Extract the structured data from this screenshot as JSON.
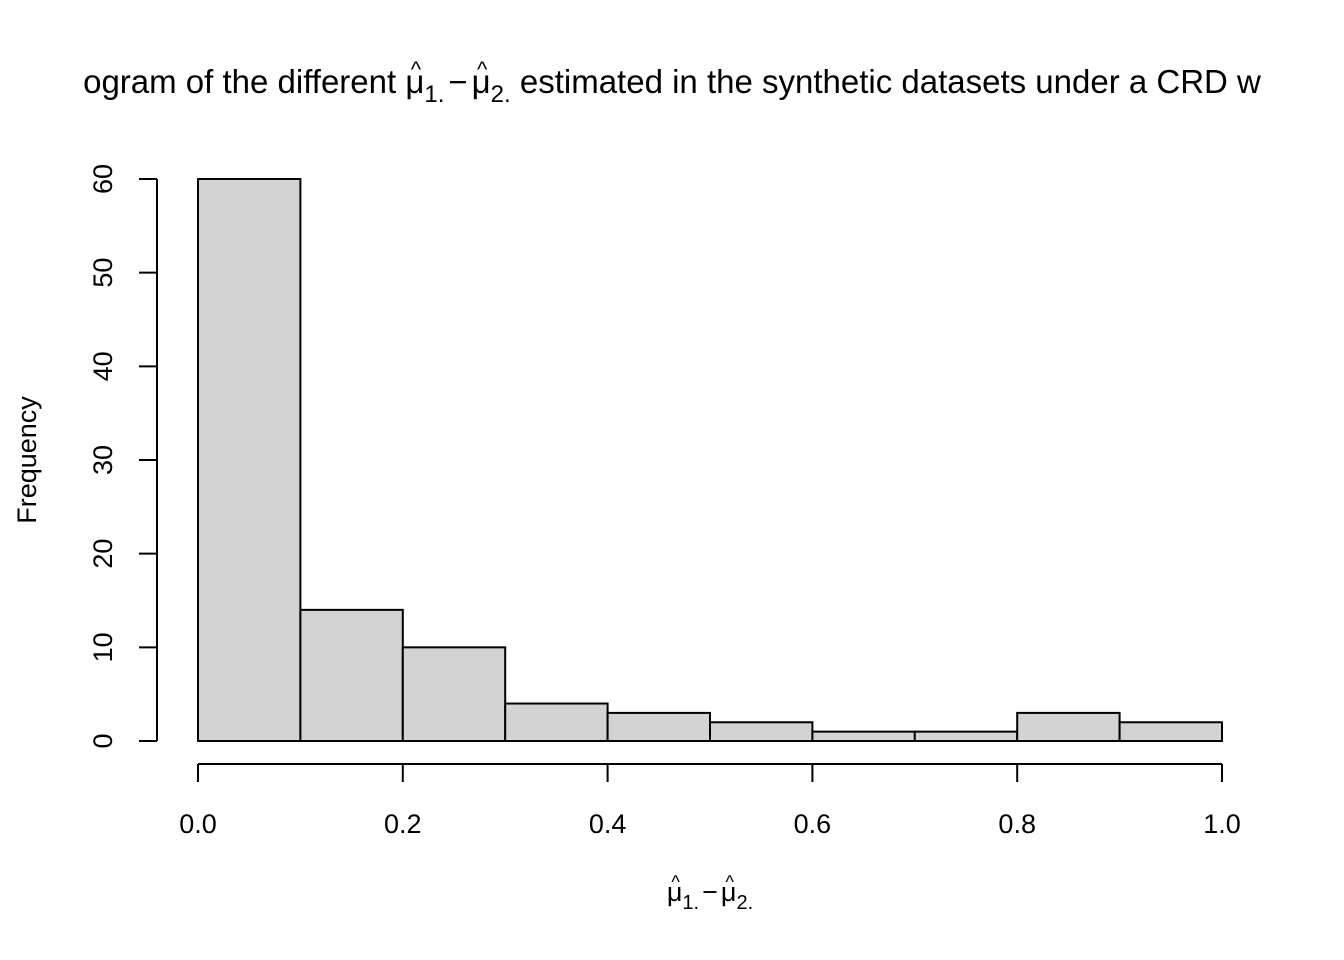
{
  "chart_data": {
    "type": "bar",
    "title_parts": {
      "prefix": "ogram of the different ",
      "mu": "μ",
      "hat": "^",
      "sub1": "1.",
      "minus": "−",
      "sub2": "2.",
      "suffix": " estimated in the synthetic datasets under a CRD w"
    },
    "xlabel_parts": {
      "mu": "μ",
      "hat": "^",
      "sub1": "1.",
      "minus": "−",
      "sub2": "2."
    },
    "ylabel": "Frequency",
    "bins": [
      {
        "start": 0.0,
        "end": 0.1,
        "count": 60
      },
      {
        "start": 0.1,
        "end": 0.2,
        "count": 14
      },
      {
        "start": 0.2,
        "end": 0.3,
        "count": 10
      },
      {
        "start": 0.3,
        "end": 0.4,
        "count": 4
      },
      {
        "start": 0.4,
        "end": 0.5,
        "count": 3
      },
      {
        "start": 0.5,
        "end": 0.6,
        "count": 2
      },
      {
        "start": 0.6,
        "end": 0.7,
        "count": 1
      },
      {
        "start": 0.7,
        "end": 0.8,
        "count": 1
      },
      {
        "start": 0.8,
        "end": 0.9,
        "count": 3
      },
      {
        "start": 0.9,
        "end": 1.0,
        "count": 2
      }
    ],
    "xlim": [
      0.0,
      1.0
    ],
    "ylim": [
      0,
      60
    ],
    "xticks": [
      "0.0",
      "0.2",
      "0.4",
      "0.6",
      "0.8",
      "1.0"
    ],
    "yticks": [
      "0",
      "10",
      "20",
      "30",
      "40",
      "50",
      "60"
    ],
    "bar_fill": "#d3d3d3",
    "bar_stroke": "#000000",
    "grid": false,
    "legend": "none"
  }
}
